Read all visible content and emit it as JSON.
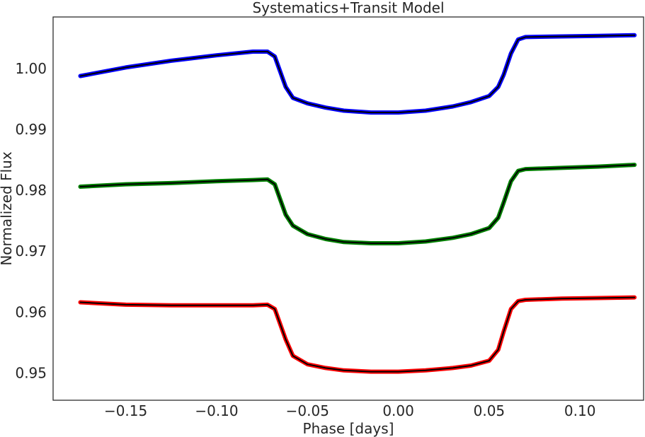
{
  "chart_data": {
    "type": "line",
    "title": "Systematics+Transit Model",
    "xlabel": "Phase [days]",
    "ylabel": "Normalized Flux",
    "xlim": [
      -0.19,
      0.135
    ],
    "ylim": [
      0.9455,
      1.0085
    ],
    "grid": false,
    "legend": "none",
    "x_ticks": [
      -0.15,
      -0.1,
      -0.05,
      0.0,
      0.05,
      0.1
    ],
    "x_tick_labels": [
      "−0.15",
      "−0.10",
      "−0.05",
      "0.00",
      "0.05",
      "0.10"
    ],
    "y_ticks": [
      0.95,
      0.96,
      0.97,
      0.98,
      0.99,
      1.0
    ],
    "y_tick_labels": [
      "0.95",
      "0.96",
      "0.97",
      "0.98",
      "0.99",
      "1.00"
    ],
    "series": [
      {
        "color": "#0000ff",
        "model_color": "#000000",
        "x": [
          -0.175,
          -0.15,
          -0.125,
          -0.1,
          -0.08,
          -0.072,
          -0.068,
          -0.065,
          -0.062,
          -0.058,
          -0.05,
          -0.04,
          -0.03,
          -0.015,
          0.0,
          0.015,
          0.03,
          0.04,
          0.05,
          0.055,
          0.058,
          0.062,
          0.066,
          0.07,
          0.09,
          0.11,
          0.13
        ],
        "y": [
          0.9988,
          1.0002,
          1.0013,
          1.0022,
          1.0028,
          1.0028,
          1.002,
          0.9995,
          0.997,
          0.9952,
          0.9943,
          0.9936,
          0.9931,
          0.9928,
          0.9928,
          0.9931,
          0.9938,
          0.9945,
          0.9955,
          0.997,
          0.999,
          1.0025,
          1.0048,
          1.0052,
          1.0053,
          1.0054,
          1.0055
        ]
      },
      {
        "color": "#008000",
        "model_color": "#000000",
        "x": [
          -0.175,
          -0.15,
          -0.125,
          -0.1,
          -0.08,
          -0.072,
          -0.068,
          -0.065,
          -0.062,
          -0.058,
          -0.05,
          -0.04,
          -0.03,
          -0.015,
          0.0,
          0.015,
          0.03,
          0.04,
          0.05,
          0.055,
          0.058,
          0.062,
          0.066,
          0.07,
          0.09,
          0.11,
          0.13
        ],
        "y": [
          0.9806,
          0.981,
          0.9812,
          0.9815,
          0.9817,
          0.9818,
          0.981,
          0.9785,
          0.976,
          0.9742,
          0.9728,
          0.972,
          0.9715,
          0.9713,
          0.9713,
          0.9716,
          0.9722,
          0.9728,
          0.9738,
          0.9755,
          0.978,
          0.9815,
          0.9832,
          0.9835,
          0.9837,
          0.9839,
          0.9842
        ]
      },
      {
        "color": "#ff0000",
        "model_color": "#000000",
        "x": [
          -0.175,
          -0.15,
          -0.125,
          -0.1,
          -0.08,
          -0.072,
          -0.068,
          -0.065,
          -0.062,
          -0.058,
          -0.05,
          -0.04,
          -0.03,
          -0.015,
          0.0,
          0.015,
          0.03,
          0.04,
          0.05,
          0.055,
          0.058,
          0.062,
          0.066,
          0.07,
          0.09,
          0.11,
          0.13
        ],
        "y": [
          0.9616,
          0.9612,
          0.9611,
          0.9611,
          0.9611,
          0.9612,
          0.9605,
          0.958,
          0.9555,
          0.9528,
          0.9514,
          0.9508,
          0.9504,
          0.9502,
          0.9502,
          0.9504,
          0.9508,
          0.9512,
          0.952,
          0.9538,
          0.9568,
          0.9605,
          0.9618,
          0.962,
          0.9622,
          0.9623,
          0.9624
        ]
      }
    ]
  }
}
